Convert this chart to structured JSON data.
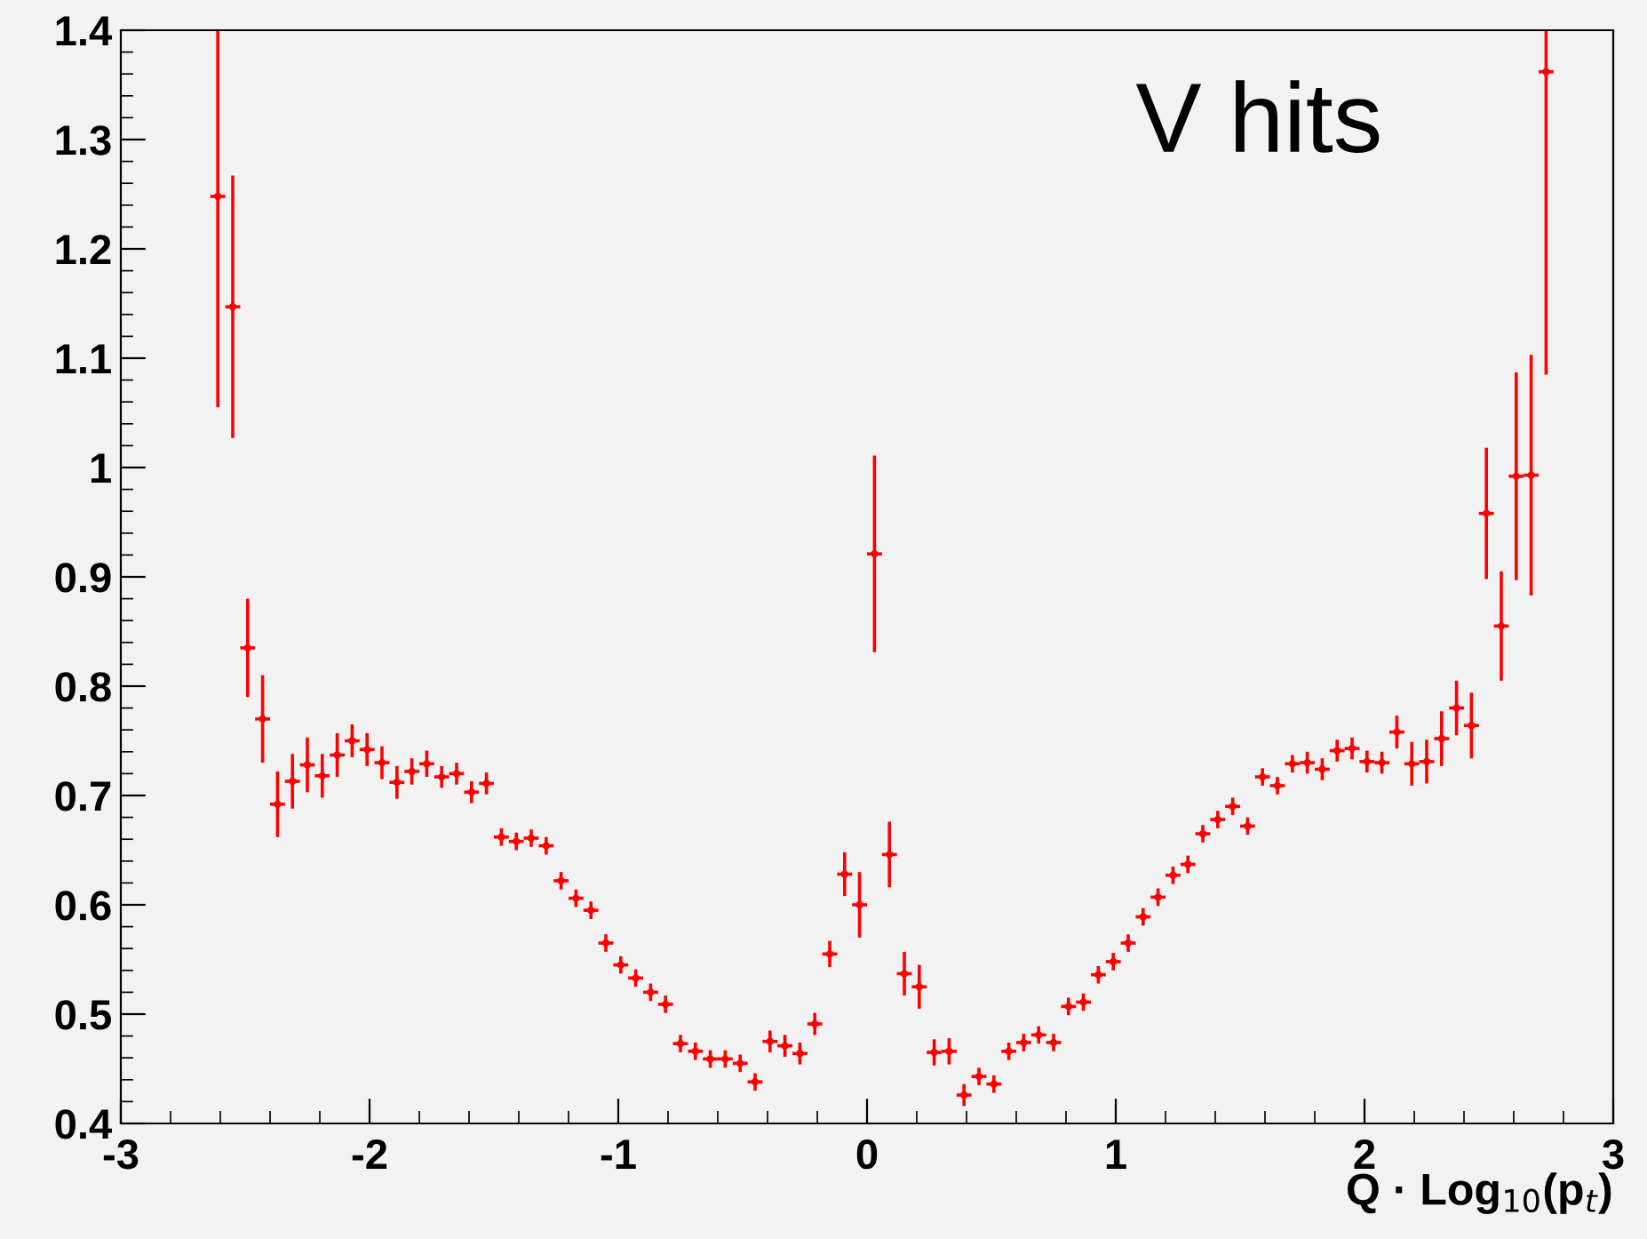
{
  "chart_data": {
    "type": "scatter",
    "xlabel": "Q · Log$_{10}$(p$_{t}$)",
    "annotations": [
      "V hits"
    ],
    "x": [
      -2.61,
      -2.55,
      -2.49,
      -2.43,
      -2.37,
      -2.31,
      -2.25,
      -2.19,
      -2.13,
      -2.07,
      -2.01,
      -1.95,
      -1.89,
      -1.83,
      -1.77,
      -1.71,
      -1.65,
      -1.59,
      -1.53,
      -1.47,
      -1.41,
      -1.35,
      -1.29,
      -1.23,
      -1.17,
      -1.11,
      -1.05,
      -0.99,
      -0.93,
      -0.87,
      -0.81,
      -0.75,
      -0.69,
      -0.63,
      -0.57,
      -0.51,
      -0.45,
      -0.39,
      -0.33,
      -0.27,
      -0.21,
      -0.15,
      -0.09,
      -0.03,
      0.03,
      0.09,
      0.15,
      0.21,
      0.27,
      0.33,
      0.39,
      0.45,
      0.51,
      0.57,
      0.63,
      0.69,
      0.75,
      0.81,
      0.87,
      0.93,
      0.99,
      1.05,
      1.11,
      1.17,
      1.23,
      1.29,
      1.35,
      1.41,
      1.47,
      1.53,
      1.59,
      1.65,
      1.71,
      1.77,
      1.83,
      1.89,
      1.95,
      2.01,
      2.07,
      2.13,
      2.19,
      2.25,
      2.31,
      2.37,
      2.43,
      2.49,
      2.55,
      2.61,
      2.67,
      2.73
    ],
    "series": [
      {
        "color": "#ff0000",
        "values": [
          1.248,
          1.147,
          0.835,
          0.77,
          0.692,
          0.713,
          0.728,
          0.718,
          0.737,
          0.75,
          0.742,
          0.73,
          0.712,
          0.722,
          0.729,
          0.717,
          0.72,
          0.703,
          0.711,
          0.662,
          0.658,
          0.661,
          0.654,
          0.622,
          0.606,
          0.595,
          0.565,
          0.545,
          0.533,
          0.52,
          0.509,
          0.473,
          0.466,
          0.459,
          0.459,
          0.455,
          0.438,
          0.475,
          0.471,
          0.464,
          0.491,
          0.555,
          0.628,
          0.6,
          0.921,
          0.646,
          0.537,
          0.525,
          0.465,
          0.466,
          0.426,
          0.443,
          0.436,
          0.466,
          0.474,
          0.481,
          0.474,
          0.507,
          0.511,
          0.536,
          0.548,
          0.565,
          0.589,
          0.607,
          0.627,
          0.637,
          0.665,
          0.678,
          0.69,
          0.672,
          0.717,
          0.709,
          0.729,
          0.73,
          0.724,
          0.741,
          0.743,
          0.731,
          0.73,
          0.758,
          0.729,
          0.731,
          0.752,
          0.78,
          0.764,
          0.958,
          0.855,
          0.992,
          0.993,
          1.362
        ],
        "errors": [
          [
            1.055,
            1.4
          ],
          0.12,
          0.045,
          0.04,
          0.03,
          0.025,
          0.025,
          0.02,
          0.02,
          0.015,
          0.015,
          0.015,
          0.015,
          0.012,
          0.012,
          0.01,
          0.01,
          0.01,
          0.01,
          0.008,
          0.008,
          0.008,
          0.008,
          0.008,
          0.008,
          0.008,
          0.008,
          0.008,
          0.008,
          0.008,
          0.008,
          0.008,
          0.008,
          0.008,
          0.008,
          0.008,
          0.008,
          0.01,
          0.01,
          0.01,
          0.01,
          0.012,
          0.02,
          0.03,
          0.09,
          0.03,
          0.02,
          0.02,
          0.012,
          0.012,
          0.01,
          0.008,
          0.008,
          0.008,
          0.008,
          0.008,
          0.008,
          0.008,
          0.008,
          0.008,
          0.008,
          0.008,
          0.008,
          0.008,
          0.008,
          0.008,
          0.008,
          0.008,
          0.008,
          0.008,
          0.008,
          0.008,
          0.008,
          0.01,
          0.01,
          0.01,
          0.01,
          0.01,
          0.01,
          0.015,
          0.02,
          0.02,
          0.025,
          0.025,
          0.03,
          0.06,
          0.05,
          0.095,
          0.11,
          [
            1.085,
            1.4
          ]
        ],
        "xerrors": [
          0.03,
          0.03,
          0.03,
          0.03,
          0.03,
          0.03,
          0.03,
          0.03,
          0.03,
          0.03,
          0.03,
          0.03,
          0.03,
          0.03,
          0.03,
          0.03,
          0.03,
          0.03,
          0.03,
          0.03,
          0.03,
          0.03,
          0.03,
          0.03,
          0.03,
          0.03,
          0.03,
          0.03,
          0.03,
          0.03,
          0.03,
          0.03,
          0.03,
          0.03,
          0.03,
          0.03,
          0.03,
          0.03,
          0.03,
          0.03,
          0.03,
          0.03,
          0.03,
          0.03,
          0.03,
          0.03,
          0.03,
          0.03,
          0.03,
          0.03,
          0.03,
          0.03,
          0.03,
          0.03,
          0.03,
          0.03,
          0.03,
          0.03,
          0.03,
          0.03,
          0.03,
          0.03,
          0.03,
          0.03,
          0.03,
          0.03,
          0.03,
          0.03,
          0.03,
          0.03,
          0.03,
          0.03,
          0.03,
          0.03,
          0.03,
          0.03,
          0.03,
          0.03,
          0.03,
          0.03,
          0.03,
          0.03,
          0.03,
          0.03,
          0.03,
          0.03,
          0.03,
          0.03,
          0.03,
          0.03
        ]
      }
    ],
    "xlim": [
      -3,
      3
    ],
    "ylim": [
      0.4,
      1.4
    ],
    "xticks": [
      -3,
      -2,
      -1,
      0,
      1,
      2,
      3
    ],
    "yticks": [
      0.4,
      0.5,
      0.6,
      0.7,
      0.8,
      0.9,
      1,
      1.1,
      1.2,
      1.3,
      1.4
    ],
    "grid": false,
    "legend": false
  }
}
